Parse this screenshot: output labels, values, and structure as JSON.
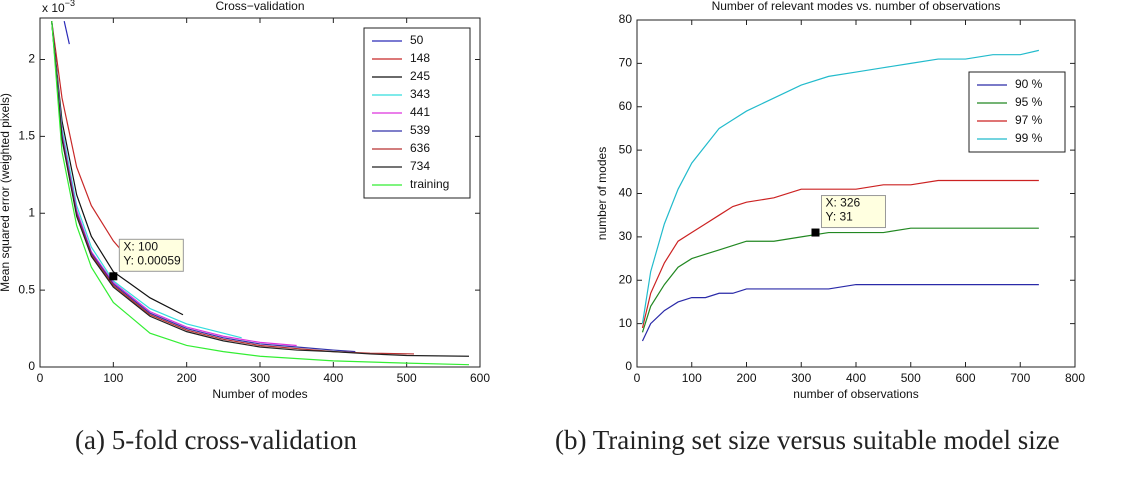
{
  "chart_data": [
    {
      "type": "line",
      "title": "Cross−validation",
      "x_label": "Number of modes",
      "y_label": "Mean squared error (weighted pixels)",
      "y_multiplier": {
        "base": "x 10",
        "exponent": "−3"
      },
      "caption": "(a) 5-fold cross-validation",
      "xlim": [
        0,
        600
      ],
      "xticks": [
        0,
        100,
        200,
        300,
        400,
        500,
        600
      ],
      "ylim": [
        0,
        2.27
      ],
      "yticks": [
        0,
        0.5,
        1,
        1.5,
        2
      ],
      "legend": "upper right",
      "series": [
        {
          "name": "50",
          "color": "#2a2ab8",
          "x": [
            33,
            40
          ],
          "values": [
            2.25,
            2.1
          ]
        },
        {
          "name": "148",
          "color": "#c82828",
          "x": [
            16,
            30,
            50,
            70,
            100,
            118
          ],
          "values": [
            2.25,
            1.75,
            1.3,
            1.05,
            0.82,
            0.72
          ]
        },
        {
          "name": "245",
          "color": "#111111",
          "x": [
            16,
            30,
            50,
            70,
            100,
            150,
            195
          ],
          "values": [
            2.25,
            1.6,
            1.12,
            0.85,
            0.62,
            0.45,
            0.34
          ]
        },
        {
          "name": "343",
          "color": "#33dddd",
          "x": [
            16,
            30,
            50,
            70,
            100,
            150,
            200,
            250,
            275
          ],
          "values": [
            2.25,
            1.55,
            1.05,
            0.78,
            0.56,
            0.38,
            0.28,
            0.22,
            0.19
          ]
        },
        {
          "name": "441",
          "color": "#dd33dd",
          "x": [
            16,
            30,
            50,
            70,
            100,
            150,
            200,
            250,
            300,
            350
          ],
          "values": [
            2.25,
            1.52,
            1.02,
            0.75,
            0.55,
            0.36,
            0.26,
            0.2,
            0.16,
            0.14
          ]
        },
        {
          "name": "539",
          "color": "#3333aa",
          "x": [
            16,
            30,
            50,
            70,
            100,
            150,
            200,
            250,
            300,
            350,
            400,
            430
          ],
          "values": [
            2.25,
            1.5,
            1.0,
            0.74,
            0.54,
            0.35,
            0.25,
            0.19,
            0.15,
            0.13,
            0.11,
            0.1
          ]
        },
        {
          "name": "636",
          "color": "#b83030",
          "x": [
            16,
            30,
            50,
            70,
            100,
            150,
            200,
            250,
            300,
            350,
            400,
            450,
            510
          ],
          "values": [
            2.25,
            1.49,
            0.99,
            0.73,
            0.53,
            0.34,
            0.24,
            0.18,
            0.14,
            0.12,
            0.1,
            0.09,
            0.085
          ]
        },
        {
          "name": "734",
          "color": "#222222",
          "x": [
            16,
            30,
            50,
            70,
            100,
            150,
            200,
            250,
            300,
            350,
            400,
            450,
            500,
            585
          ],
          "values": [
            2.25,
            1.48,
            0.98,
            0.72,
            0.52,
            0.33,
            0.23,
            0.17,
            0.13,
            0.11,
            0.1,
            0.085,
            0.075,
            0.07
          ]
        },
        {
          "name": "training",
          "color": "#33ee33",
          "x": [
            16,
            30,
            50,
            70,
            100,
            150,
            200,
            250,
            300,
            400,
            500,
            585
          ],
          "values": [
            2.25,
            1.4,
            0.92,
            0.65,
            0.42,
            0.22,
            0.14,
            0.1,
            0.07,
            0.04,
            0.025,
            0.015
          ]
        }
      ],
      "annotations": [
        {
          "x": 100,
          "y": 0.59,
          "label_x": "X: 100",
          "label_y": "Y: 0.00059"
        }
      ]
    },
    {
      "type": "line",
      "title": "Number of relevant modes vs. number of observations",
      "x_label": "number of observations",
      "y_label": "number of modes",
      "caption": "(b) Training set size versus suitable model size",
      "xlim": [
        0,
        800
      ],
      "xticks": [
        0,
        100,
        200,
        300,
        400,
        500,
        600,
        700,
        800
      ],
      "ylim": [
        0,
        80
      ],
      "yticks": [
        0,
        10,
        20,
        30,
        40,
        50,
        60,
        70,
        80
      ],
      "legend": "upper right",
      "series": [
        {
          "name": "90 %",
          "color": "#2a2aa8",
          "x": [
            10,
            25,
            50,
            75,
            100,
            125,
            150,
            175,
            200,
            250,
            300,
            350,
            400,
            450,
            500,
            550,
            600,
            650,
            700,
            734
          ],
          "values": [
            6,
            10,
            13,
            15,
            16,
            16,
            17,
            17,
            18,
            18,
            18,
            18,
            19,
            19,
            19,
            19,
            19,
            19,
            19,
            19
          ]
        },
        {
          "name": "95 %",
          "color": "#228822",
          "x": [
            10,
            25,
            50,
            75,
            100,
            125,
            150,
            175,
            200,
            250,
            300,
            350,
            400,
            450,
            500,
            550,
            600,
            650,
            700,
            734
          ],
          "values": [
            8,
            14,
            19,
            23,
            25,
            26,
            27,
            28,
            29,
            29,
            30,
            31,
            31,
            31,
            32,
            32,
            32,
            32,
            32,
            32
          ]
        },
        {
          "name": "97 %",
          "color": "#cc2222",
          "x": [
            10,
            25,
            50,
            75,
            100,
            125,
            150,
            175,
            200,
            250,
            300,
            350,
            400,
            450,
            500,
            550,
            600,
            650,
            700,
            734
          ],
          "values": [
            9,
            17,
            24,
            29,
            31,
            33,
            35,
            37,
            38,
            39,
            41,
            41,
            41,
            42,
            42,
            43,
            43,
            43,
            43,
            43
          ]
        },
        {
          "name": "99 %",
          "color": "#22bbcc",
          "x": [
            10,
            25,
            50,
            75,
            100,
            125,
            150,
            175,
            200,
            250,
            300,
            350,
            400,
            450,
            500,
            550,
            600,
            650,
            700,
            734
          ],
          "values": [
            10,
            22,
            33,
            41,
            47,
            51,
            55,
            57,
            59,
            62,
            65,
            67,
            68,
            69,
            70,
            71,
            71,
            72,
            72,
            73
          ]
        }
      ],
      "annotations": [
        {
          "x": 326,
          "y": 31,
          "label_x": "X: 326",
          "label_y": "Y: 31"
        }
      ]
    }
  ]
}
